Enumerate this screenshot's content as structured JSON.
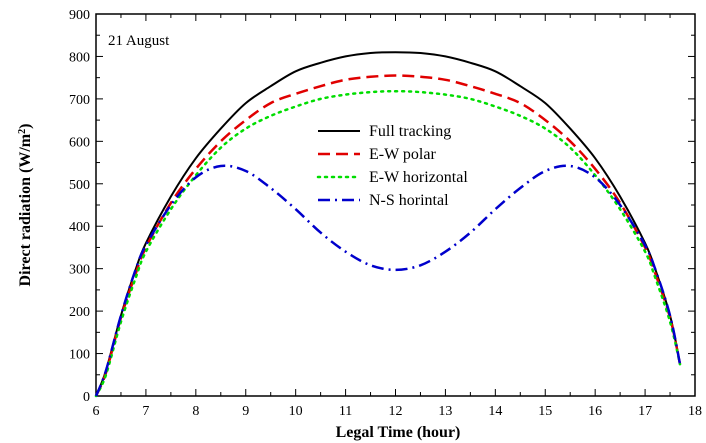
{
  "chart_data": {
    "type": "line",
    "annotation": "21 August",
    "xlabel": "Legal Time (hour)",
    "ylabel_main": "Direct radiation (W/m",
    "ylabel_sup": "2",
    "ylabel_close": ")",
    "xlim": [
      6,
      18
    ],
    "ylim": [
      0,
      900
    ],
    "x_ticks": [
      6,
      7,
      8,
      9,
      10,
      11,
      12,
      13,
      14,
      15,
      16,
      17,
      18
    ],
    "y_ticks": [
      0,
      100,
      200,
      300,
      400,
      500,
      600,
      700,
      800,
      900
    ],
    "legend_position": "center",
    "grid": false,
    "series": [
      {
        "name": "Full tracking",
        "color": "#000000",
        "dash": "solid",
        "points": [
          [
            6.0,
            0
          ],
          [
            6.2,
            60
          ],
          [
            6.5,
            190
          ],
          [
            6.8,
            300
          ],
          [
            7.0,
            360
          ],
          [
            7.5,
            470
          ],
          [
            8.0,
            560
          ],
          [
            8.5,
            630
          ],
          [
            9.0,
            690
          ],
          [
            9.5,
            730
          ],
          [
            10.0,
            765
          ],
          [
            10.5,
            785
          ],
          [
            11.0,
            800
          ],
          [
            11.5,
            808
          ],
          [
            12.0,
            810
          ],
          [
            12.5,
            808
          ],
          [
            13.0,
            800
          ],
          [
            13.5,
            785
          ],
          [
            14.0,
            765
          ],
          [
            14.5,
            730
          ],
          [
            15.0,
            690
          ],
          [
            15.5,
            630
          ],
          [
            16.0,
            560
          ],
          [
            16.5,
            470
          ],
          [
            17.0,
            360
          ],
          [
            17.2,
            300
          ],
          [
            17.5,
            190
          ],
          [
            17.7,
            75
          ]
        ]
      },
      {
        "name": "E-W polar",
        "color": "#e00000",
        "dash": "dashed",
        "points": [
          [
            6.0,
            0
          ],
          [
            6.2,
            55
          ],
          [
            6.5,
            185
          ],
          [
            6.8,
            290
          ],
          [
            7.0,
            350
          ],
          [
            7.5,
            455
          ],
          [
            8.0,
            535
          ],
          [
            8.5,
            600
          ],
          [
            9.0,
            650
          ],
          [
            9.5,
            690
          ],
          [
            10.0,
            712
          ],
          [
            10.5,
            730
          ],
          [
            11.0,
            745
          ],
          [
            11.5,
            752
          ],
          [
            12.0,
            755
          ],
          [
            12.5,
            752
          ],
          [
            13.0,
            745
          ],
          [
            13.5,
            730
          ],
          [
            14.0,
            712
          ],
          [
            14.5,
            690
          ],
          [
            15.0,
            650
          ],
          [
            15.5,
            600
          ],
          [
            16.0,
            535
          ],
          [
            16.5,
            455
          ],
          [
            17.0,
            350
          ],
          [
            17.2,
            290
          ],
          [
            17.5,
            185
          ],
          [
            17.7,
            75
          ]
        ]
      },
      {
        "name": "E-W horizontal",
        "color": "#00dd00",
        "dash": "dotted",
        "points": [
          [
            6.0,
            0
          ],
          [
            6.2,
            50
          ],
          [
            6.5,
            175
          ],
          [
            6.8,
            280
          ],
          [
            7.0,
            340
          ],
          [
            7.5,
            440
          ],
          [
            8.0,
            520
          ],
          [
            8.5,
            585
          ],
          [
            9.0,
            630
          ],
          [
            9.5,
            660
          ],
          [
            10.0,
            682
          ],
          [
            10.5,
            700
          ],
          [
            11.0,
            710
          ],
          [
            11.5,
            716
          ],
          [
            12.0,
            718
          ],
          [
            12.5,
            716
          ],
          [
            13.0,
            710
          ],
          [
            13.5,
            700
          ],
          [
            14.0,
            682
          ],
          [
            14.5,
            660
          ],
          [
            15.0,
            630
          ],
          [
            15.5,
            585
          ],
          [
            16.0,
            520
          ],
          [
            16.5,
            440
          ],
          [
            17.0,
            340
          ],
          [
            17.2,
            280
          ],
          [
            17.5,
            175
          ],
          [
            17.7,
            75
          ]
        ]
      },
      {
        "name": "N-S horintal",
        "color": "#0000cc",
        "dash": "dashdot",
        "points": [
          [
            6.0,
            0
          ],
          [
            6.2,
            60
          ],
          [
            6.5,
            190
          ],
          [
            6.8,
            300
          ],
          [
            7.0,
            355
          ],
          [
            7.5,
            450
          ],
          [
            8.0,
            515
          ],
          [
            8.5,
            542
          ],
          [
            9.0,
            530
          ],
          [
            9.5,
            490
          ],
          [
            10.0,
            440
          ],
          [
            10.5,
            385
          ],
          [
            11.0,
            340
          ],
          [
            11.5,
            308
          ],
          [
            12.0,
            297
          ],
          [
            12.5,
            308
          ],
          [
            13.0,
            340
          ],
          [
            13.5,
            385
          ],
          [
            14.0,
            440
          ],
          [
            14.5,
            490
          ],
          [
            15.0,
            530
          ],
          [
            15.5,
            542
          ],
          [
            16.0,
            515
          ],
          [
            16.5,
            450
          ],
          [
            17.0,
            355
          ],
          [
            17.2,
            300
          ],
          [
            17.5,
            190
          ],
          [
            17.7,
            75
          ]
        ]
      }
    ]
  }
}
